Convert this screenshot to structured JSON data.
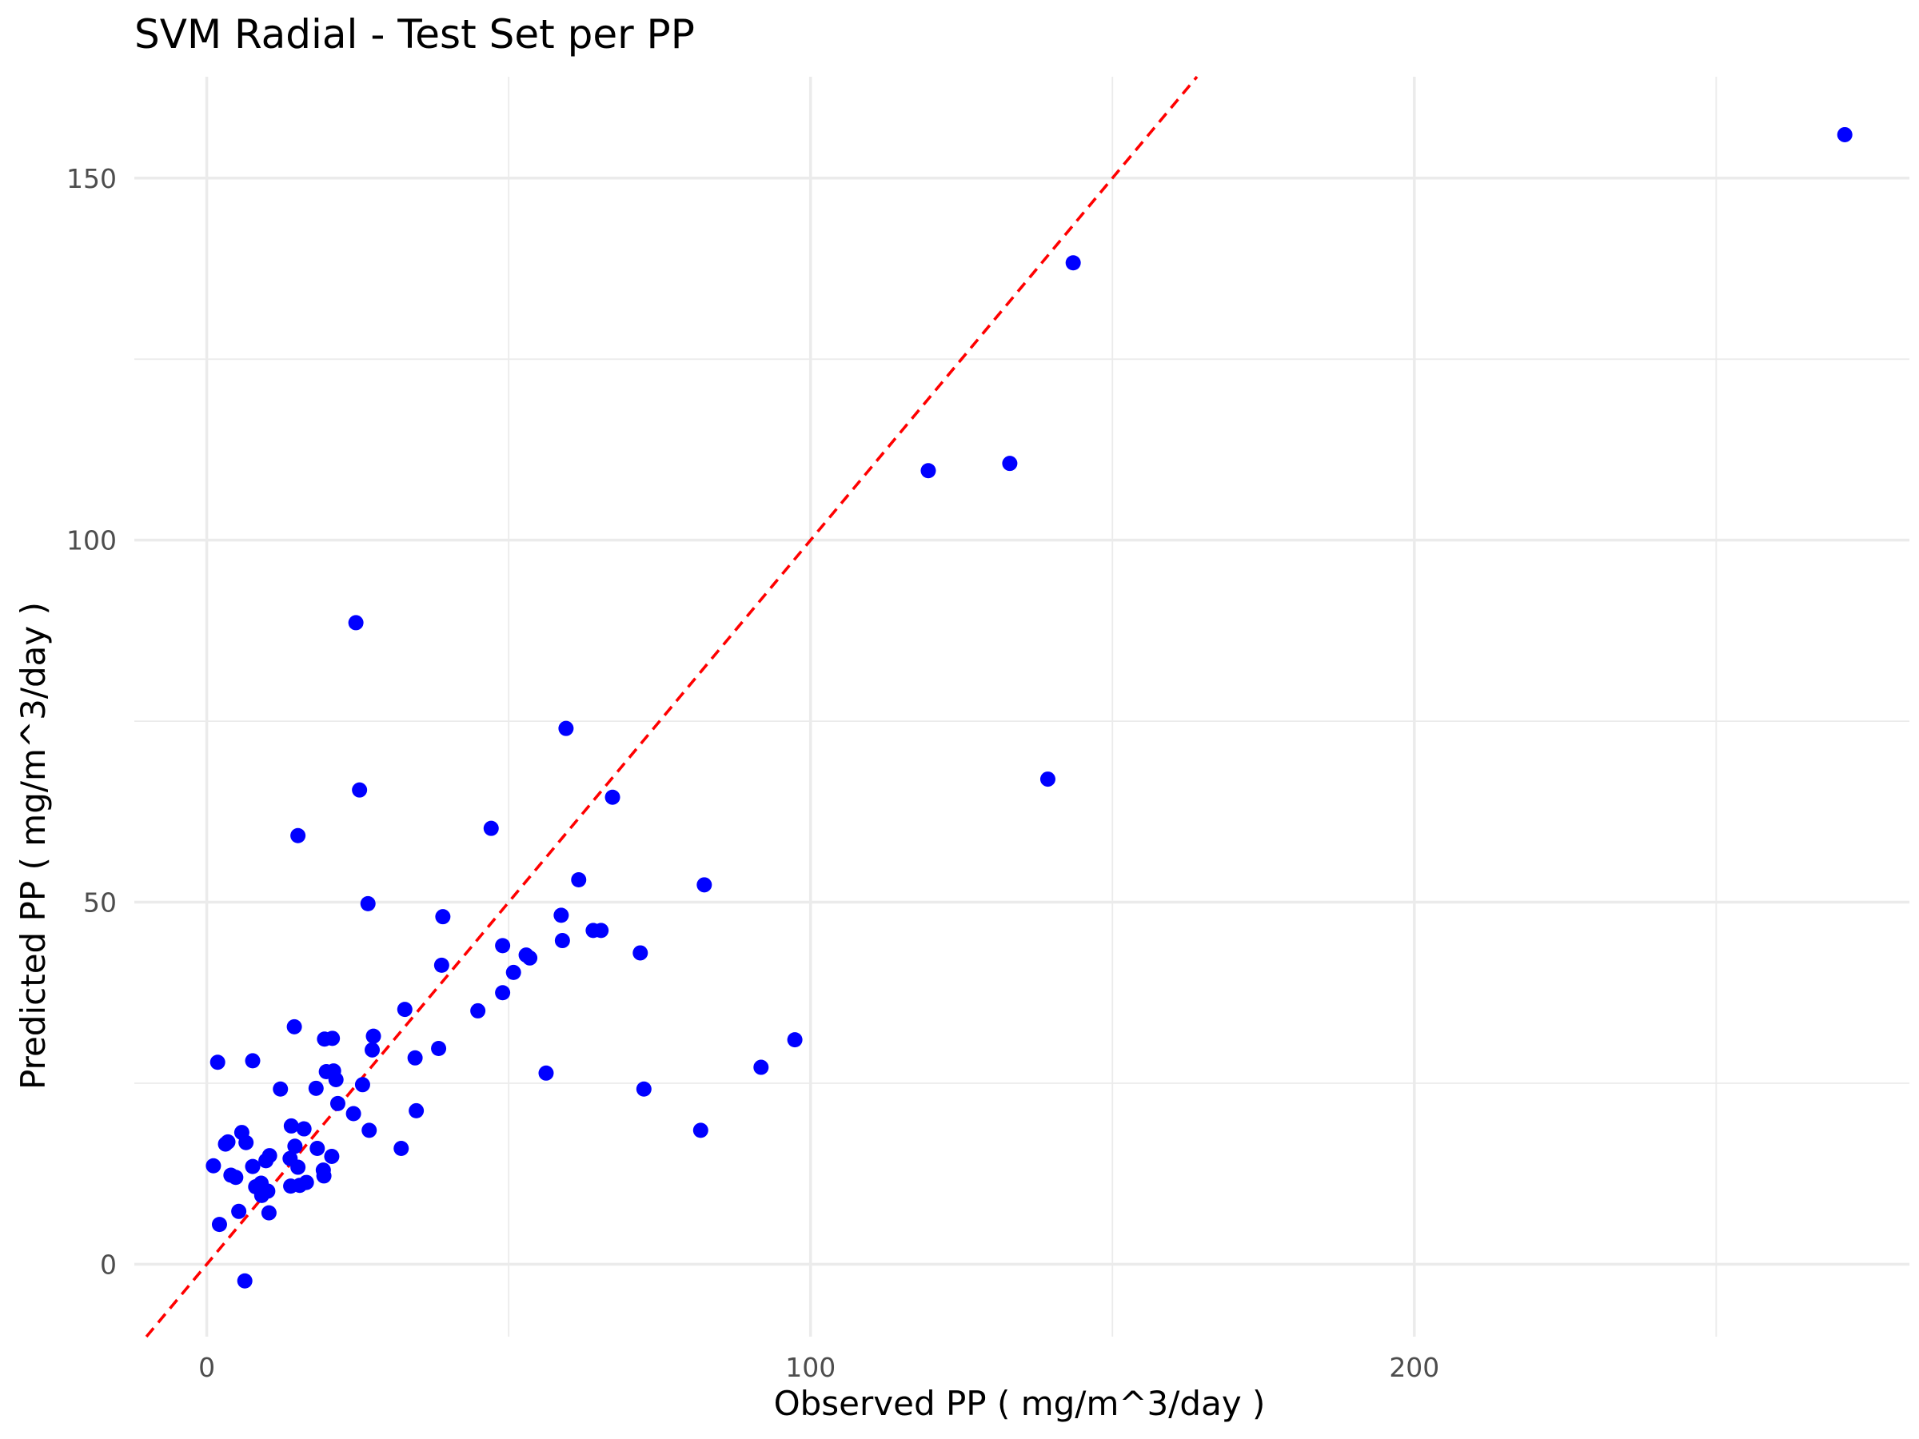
{
  "chart_data": {
    "type": "scatter",
    "title": "SVM Radial - Test Set per PP",
    "xlabel": "Observed PP ( mg/m^3/day )",
    "ylabel": "Predicted PP ( mg/m^3/day )",
    "xlim": [
      -12,
      282
    ],
    "ylim": [
      -10,
      164
    ],
    "xticks": [
      0,
      100,
      200
    ],
    "yticks": [
      0,
      50,
      100,
      150
    ],
    "xtick_labels": [
      "0",
      "100",
      "200"
    ],
    "ytick_labels": [
      "0",
      "50",
      "100",
      "150"
    ],
    "grid": true,
    "legend": "none",
    "colors": {
      "points": "#0000ff",
      "reference_line": "#ff0000"
    },
    "reference_line": {
      "type": "identity",
      "slope": 1,
      "intercept": 0,
      "style": "dashed"
    },
    "series": [
      {
        "x": [
          271.3,
          143.5,
          133.0,
          119.5,
          139.3,
          59.5,
          67.2,
          24.7,
          25.3,
          15.1,
          47.1,
          82.4,
          61.6,
          26.7,
          39.1,
          58.7,
          64.0,
          65.3,
          58.9,
          71.8,
          49.0,
          52.9,
          53.5,
          38.9,
          50.8,
          49.0,
          44.9,
          32.8,
          97.4,
          91.8,
          1.8,
          7.6,
          14.5,
          19.5,
          20.8,
          27.6,
          34.5,
          27.4,
          38.4,
          56.2,
          19.8,
          21.0,
          21.4,
          18.1,
          72.4,
          12.2,
          25.8,
          34.7,
          24.3,
          21.7,
          26.9,
          16.1,
          18.3,
          81.8,
          14.0,
          5.8,
          14.6,
          3.5,
          3.1,
          6.5,
          13.8,
          15.1,
          10.4,
          9.8,
          1.1,
          7.6,
          16.5,
          4.0,
          19.4,
          32.2,
          4.8,
          20.7,
          9.0,
          10.1,
          8.1,
          15.4,
          13.9,
          19.3,
          9.1,
          5.3,
          10.3,
          2.1,
          6.3
        ],
        "y": [
          156.0,
          138.3,
          110.6,
          109.6,
          67.0,
          74.0,
          64.5,
          88.6,
          65.5,
          59.2,
          60.2,
          52.4,
          53.1,
          49.8,
          48.0,
          48.2,
          46.1,
          46.1,
          44.7,
          43.0,
          44.0,
          42.7,
          42.3,
          41.3,
          40.3,
          37.5,
          35.0,
          35.2,
          31.0,
          27.2,
          27.9,
          28.1,
          32.8,
          31.1,
          31.2,
          31.5,
          28.5,
          29.6,
          29.8,
          26.4,
          26.6,
          26.7,
          25.5,
          24.3,
          24.2,
          24.2,
          24.8,
          21.2,
          20.8,
          22.2,
          18.5,
          18.7,
          16.0,
          18.5,
          19.1,
          18.2,
          16.3,
          16.9,
          16.6,
          16.8,
          14.6,
          13.4,
          15.0,
          14.3,
          13.6,
          13.5,
          11.3,
          12.3,
          12.2,
          16.0,
          12.0,
          14.9,
          11.2,
          10.1,
          10.7,
          10.9,
          10.8,
          13.0,
          9.5,
          7.3,
          7.1,
          5.5,
          -2.3
        ]
      }
    ]
  }
}
